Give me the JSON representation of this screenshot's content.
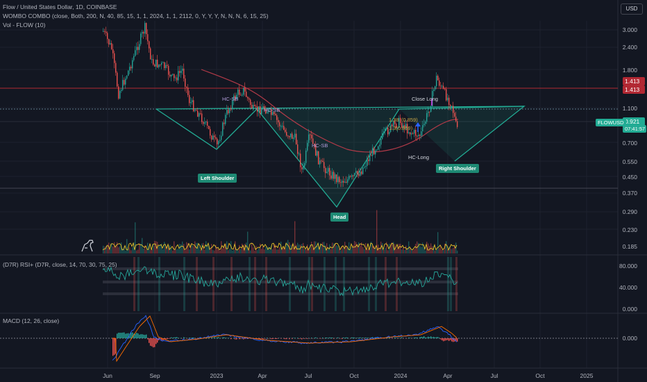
{
  "header": {
    "title": "Flow / United States Dollar, 1D, COINBASE",
    "indicator1": "WOMBO COMBO (close, Both, 200, N, 40, 85, 15, 1, 1, 2024, 1, 1, 2112, 0, Y, Y, Y, N, N, N, 6, 15, 25)",
    "indicator2": "Vol - FLOW (10)",
    "currency_button": "USD"
  },
  "price_axis": {
    "ticks": [
      "3.000",
      "2.400",
      "1.800",
      "1.100",
      "0.700",
      "0.550",
      "0.450",
      "0.370",
      "0.290",
      "0.230",
      "0.185"
    ],
    "resistance_tag_1": "1.413",
    "resistance_tag_2": "1.413",
    "current_price": "0.921",
    "countdown": "07:41:57",
    "symbol_tag": "FLOWUSD"
  },
  "rsi_panel": {
    "label": "(D7R) RSI+ (D7R, close, 14, 70, 30, 75, 25)",
    "ticks": [
      "80.000",
      "40.000",
      "0.000"
    ]
  },
  "macd_panel": {
    "label": "MACD (12, 26, close)",
    "ticks": [
      "0.000"
    ]
  },
  "time_axis": [
    "Jun",
    "Sep",
    "2023",
    "Apr",
    "Jul",
    "Oct",
    "2024",
    "Apr",
    "Jul",
    "Oct",
    "2025"
  ],
  "annotations": {
    "left_shoulder": "Left Shoulder",
    "head": "Head",
    "right_shoulder": "Right Shoulder",
    "close_long": "Close Long",
    "hc_long": "HC-Long",
    "hc_sb_1": "HC-SB",
    "hc_sb_2": "HC-SB",
    "hc_sb_3": "HC-SB",
    "fib_1": "1.38",
    "fib_2": "(0.859)",
    "fib_3": "1.3(0.859)"
  },
  "colors": {
    "background": "#131722",
    "up": "#26a69a",
    "down": "#ef5350",
    "pattern": "#22ab94",
    "resistance": "#b22833",
    "ma": "#b23a48"
  },
  "chart_data": {
    "type": "line",
    "title": "Flow / United States Dollar, 1D, COINBASE",
    "x": [
      "Jun",
      "Sep",
      "2023",
      "Apr",
      "Jul",
      "Oct",
      "2024",
      "Apr"
    ],
    "series": [
      {
        "name": "FLOWUSD",
        "values": [
          2.8,
          1.7,
          1.0,
          1.1,
          0.6,
          0.45,
          0.85,
          0.921
        ]
      }
    ]
  }
}
